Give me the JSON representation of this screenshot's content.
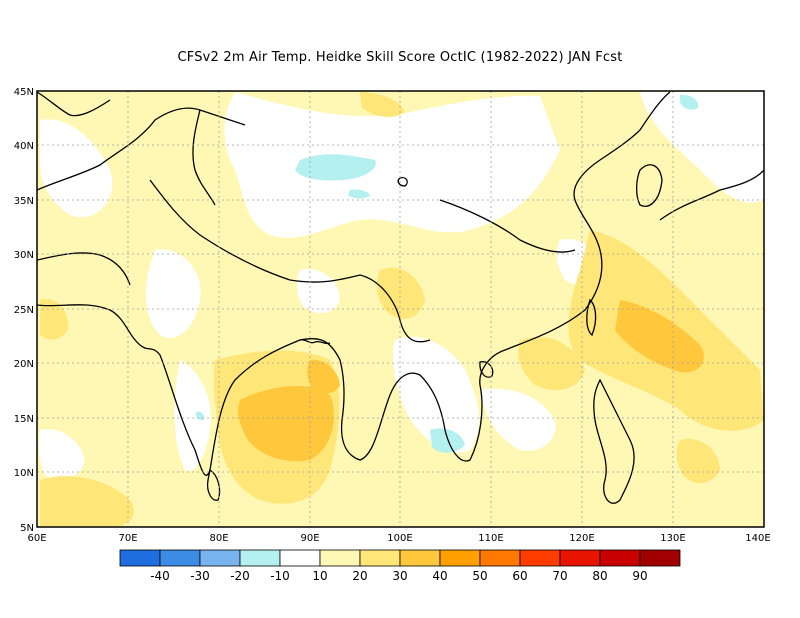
{
  "title": "CFSv2  2m Air Temp. Heidke Skill Score OctIC (1982-2022) JAN Fcst",
  "map": {
    "lon_range": [
      60,
      140
    ],
    "lat_range": [
      5,
      45
    ],
    "lat_ticks": [
      "5N",
      "10N",
      "15N",
      "20N",
      "25N",
      "30N",
      "35N",
      "40N",
      "45N"
    ],
    "lon_ticks": [
      "60E",
      "70E",
      "80E",
      "90E",
      "100E",
      "110E",
      "120E",
      "130E",
      "140E"
    ]
  },
  "colorbar": {
    "colors": [
      "#1e6ee0",
      "#3c8ce6",
      "#78b4f0",
      "#b4f0f0",
      "#ffffff",
      "#fff8b4",
      "#ffe678",
      "#ffc83c",
      "#ffa000",
      "#ff7800",
      "#ff3c00",
      "#e61400",
      "#c80000",
      "#a00000"
    ],
    "labels": [
      "-40",
      "-30",
      "-20",
      "-10",
      "10",
      "20",
      "30",
      "40",
      "50",
      "60",
      "70",
      "80",
      "90"
    ]
  }
}
